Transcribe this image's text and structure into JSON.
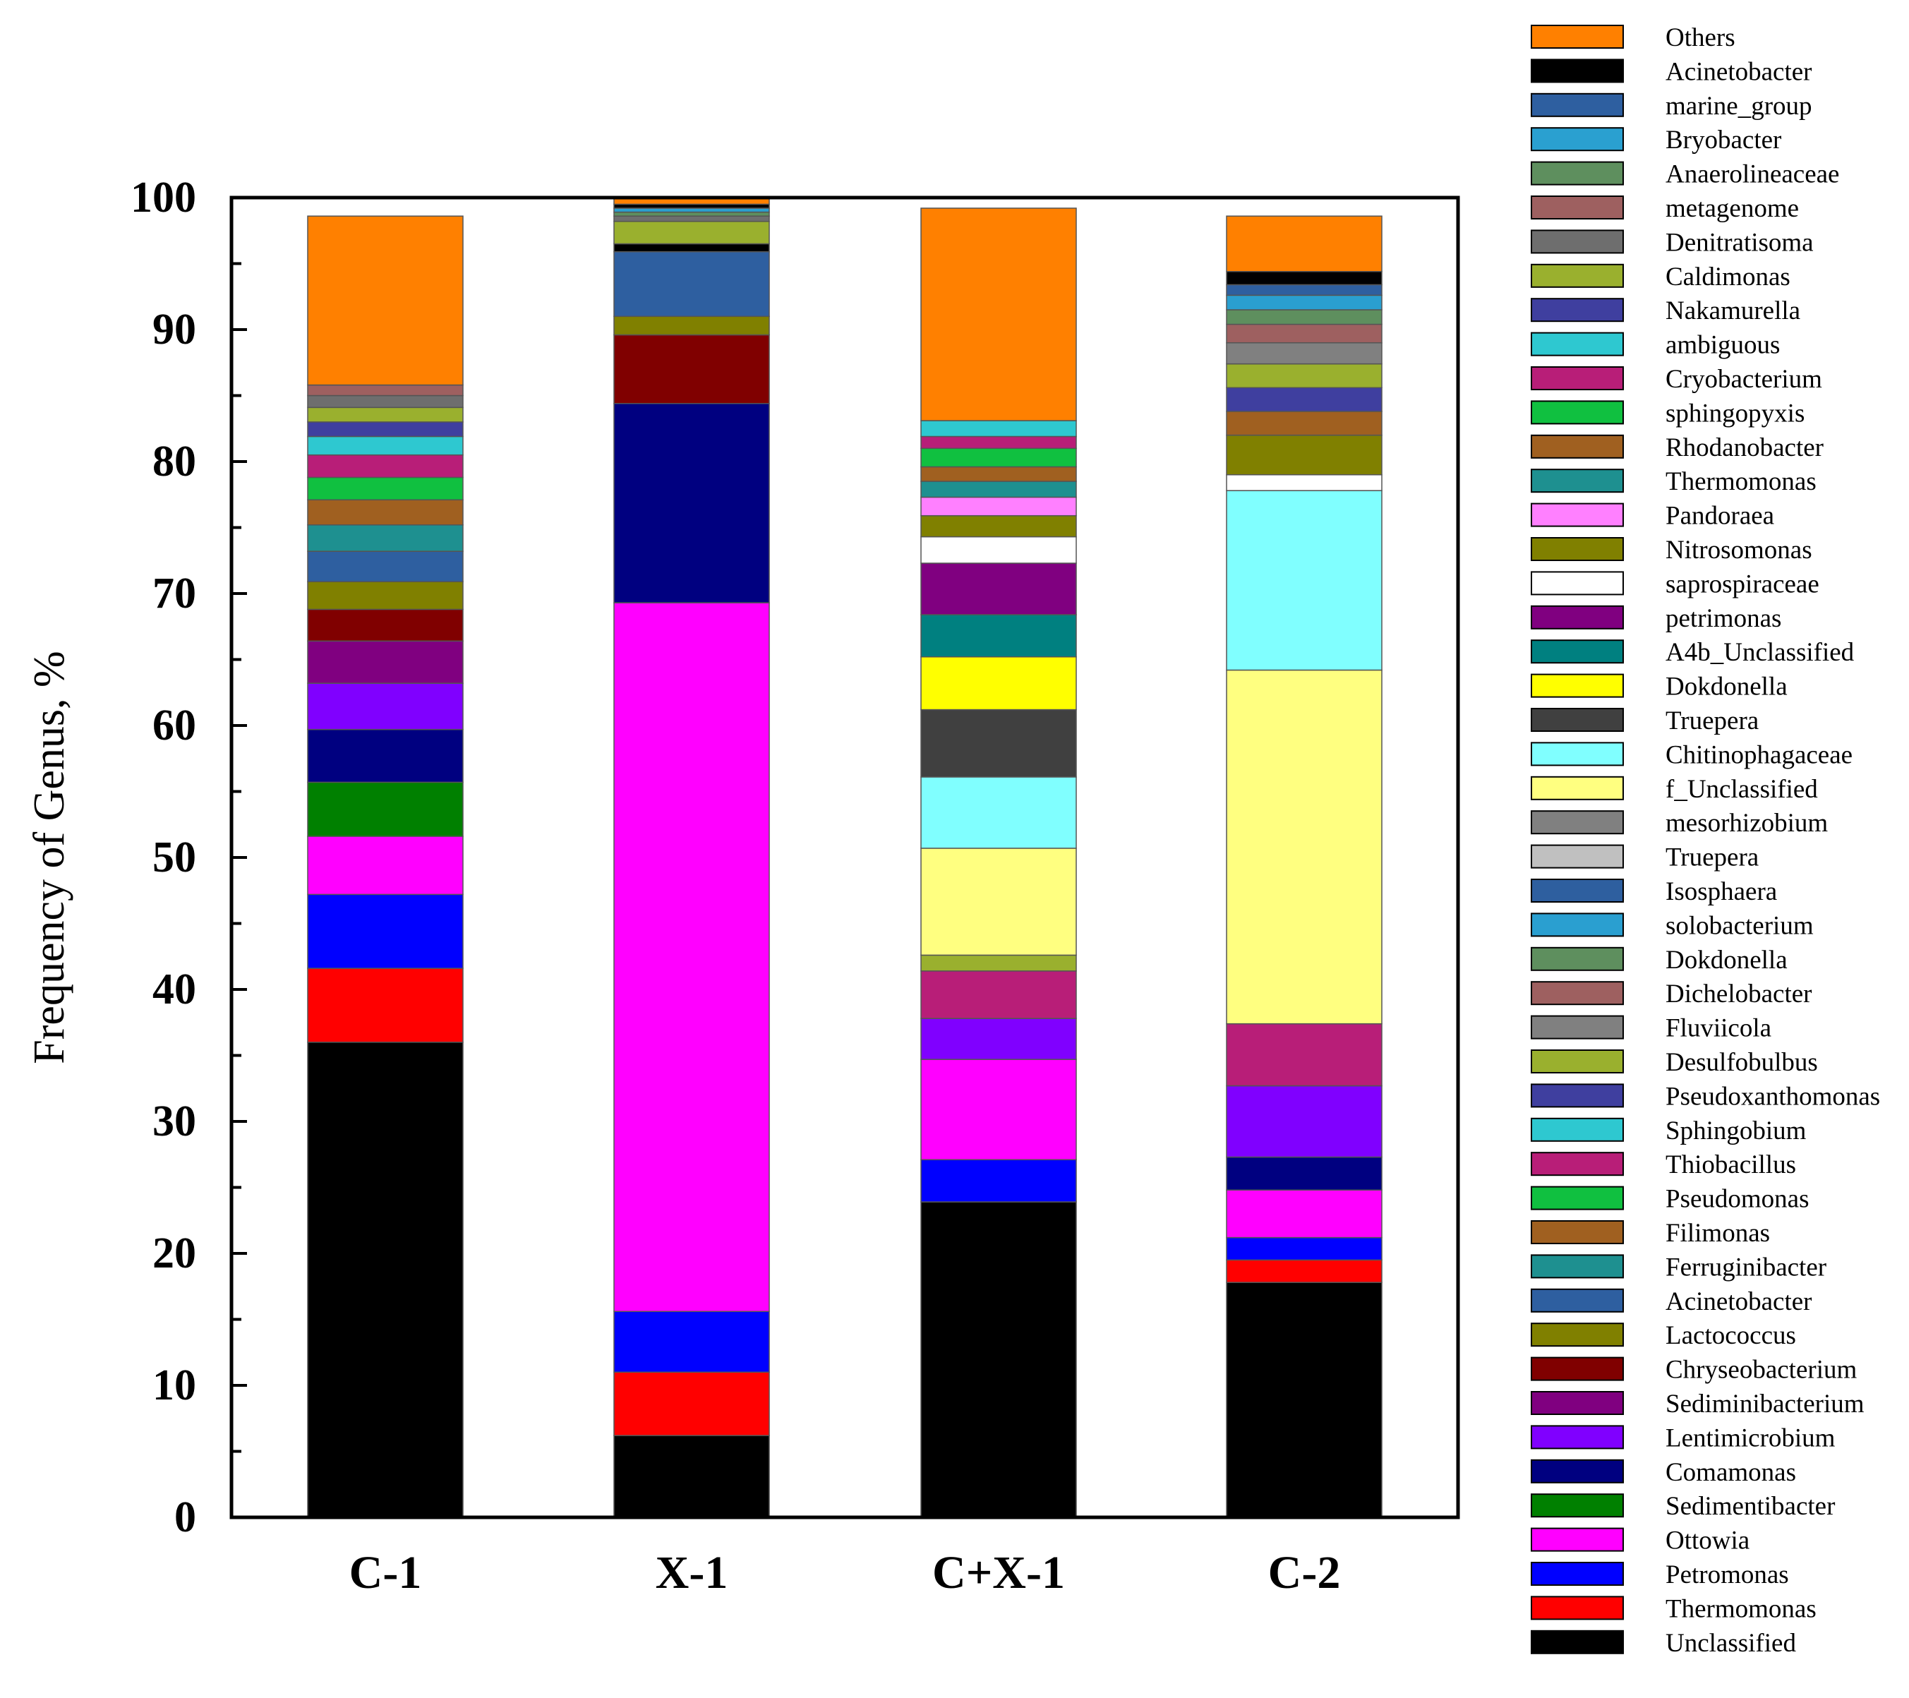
{
  "chart_data": {
    "type": "stacked-bar",
    "title": "",
    "xlabel": "",
    "ylabel": "Frequency of Genus, %",
    "ylim": [
      0,
      100
    ],
    "yticks": [
      0,
      10,
      20,
      30,
      40,
      50,
      60,
      70,
      80,
      90,
      100
    ],
    "categories": [
      "C-1",
      "X-1",
      "C+X-1",
      "C-2"
    ],
    "legend": [
      {
        "name": "Others",
        "color": "#FF8000"
      },
      {
        "name": "Acinetobacter",
        "color": "#000000"
      },
      {
        "name": "marine_group",
        "color": "#2E5FA0"
      },
      {
        "name": "Bryobacter",
        "color": "#2AA0D0"
      },
      {
        "name": "Anaerolineaceae",
        "color": "#5E8F5E"
      },
      {
        "name": "metagenome",
        "color": "#9E6060"
      },
      {
        "name": "Denitratisoma",
        "color": "#6E6E6E"
      },
      {
        "name": "Caldimonas",
        "color": "#9AB02E"
      },
      {
        "name": "Nakamurella",
        "color": "#3F3F9F"
      },
      {
        "name": "ambiguous",
        "color": "#2EC8D0"
      },
      {
        "name": "Cryobacterium",
        "color": "#B81E78"
      },
      {
        "name": "sphingopyxis",
        "color": "#10C040"
      },
      {
        "name": "Rhodanobacter",
        "color": "#A06020"
      },
      {
        "name": "Thermomonas",
        "color": "#1E9090"
      },
      {
        "name": "Pandoraea",
        "color": "#FF80FF"
      },
      {
        "name": "Nitrosomonas",
        "color": "#808000"
      },
      {
        "name": "saprospiraceae",
        "color": "#FFFFFF"
      },
      {
        "name": "petrimonas",
        "color": "#800080"
      },
      {
        "name": "A4b_Unclassified",
        "color": "#008080"
      },
      {
        "name": "Dokdonella",
        "color": "#FFFF00"
      },
      {
        "name": "Truepera",
        "color": "#404040"
      },
      {
        "name": "Chitinophagaceae",
        "color": "#80FFFF"
      },
      {
        "name": "f_Unclassified",
        "color": "#FFFF80"
      },
      {
        "name": "mesorhizobium",
        "color": "#808080"
      },
      {
        "name": "Truepera",
        "color": "#C0C0C0"
      },
      {
        "name": "Isosphaera",
        "color": "#2E5F9F"
      },
      {
        "name": "solobacterium",
        "color": "#2A9FD0"
      },
      {
        "name": "Dokdonella",
        "color": "#5E8F5E"
      },
      {
        "name": "Dichelobacter",
        "color": "#9E6060"
      },
      {
        "name": "Fluviicola",
        "color": "#808080"
      },
      {
        "name": "Desulfobulbus",
        "color": "#9AB02E"
      },
      {
        "name": "Pseudoxanthomonas",
        "color": "#3F3F9F"
      },
      {
        "name": "Sphingobium",
        "color": "#2EC8D0"
      },
      {
        "name": "Thiobacillus",
        "color": "#B81E78"
      },
      {
        "name": "Pseudomonas",
        "color": "#10C040"
      },
      {
        "name": "Filimonas",
        "color": "#A06020"
      },
      {
        "name": "Ferruginibacter",
        "color": "#1E9090"
      },
      {
        "name": "Acinetobacter",
        "color": "#2E5FA0"
      },
      {
        "name": "Lactococcus",
        "color": "#808000"
      },
      {
        "name": "Chryseobacterium",
        "color": "#800000"
      },
      {
        "name": "Sediminibacterium",
        "color": "#800080"
      },
      {
        "name": "Lentimicrobium",
        "color": "#8000FF"
      },
      {
        "name": "Comamonas",
        "color": "#000080"
      },
      {
        "name": "Sedimentibacter",
        "color": "#008000"
      },
      {
        "name": "Ottowia",
        "color": "#FF00FF"
      },
      {
        "name": "Petromonas",
        "color": "#0000FF"
      },
      {
        "name": "Thermomonas",
        "color": "#FF0000"
      },
      {
        "name": "Unclassified",
        "color": "#000000"
      }
    ],
    "series_note": "Each bar segment lists [value_in_percent, color] from bottom (0%) upward.",
    "bars": [
      {
        "category": "C-1",
        "segments": [
          [
            36.0,
            "#000000"
          ],
          [
            5.6,
            "#FF0000"
          ],
          [
            5.6,
            "#0000FF"
          ],
          [
            4.4,
            "#FF00FF"
          ],
          [
            4.1,
            "#008000"
          ],
          [
            4.0,
            "#000080"
          ],
          [
            3.5,
            "#8000FF"
          ],
          [
            3.2,
            "#800080"
          ],
          [
            2.4,
            "#800000"
          ],
          [
            2.1,
            "#808000"
          ],
          [
            2.3,
            "#2E5FA0"
          ],
          [
            2.0,
            "#1E9090"
          ],
          [
            1.9,
            "#A06020"
          ],
          [
            1.7,
            "#10C040"
          ],
          [
            1.7,
            "#B81E78"
          ],
          [
            1.4,
            "#2EC8D0"
          ],
          [
            1.1,
            "#3F3F9F"
          ],
          [
            1.1,
            "#9AB02E"
          ],
          [
            0.9,
            "#6E6E6E"
          ],
          [
            0.8,
            "#9E6060"
          ],
          [
            12.8,
            "#FF8000"
          ]
        ]
      },
      {
        "category": "X-1",
        "segments": [
          [
            6.2,
            "#000000"
          ],
          [
            4.8,
            "#FF0000"
          ],
          [
            4.6,
            "#0000FF"
          ],
          [
            53.7,
            "#FF00FF"
          ],
          [
            15.1,
            "#000080"
          ],
          [
            5.2,
            "#800000"
          ],
          [
            1.4,
            "#808000"
          ],
          [
            4.9,
            "#2E5FA0"
          ],
          [
            0.6,
            "#000000"
          ],
          [
            1.7,
            "#9AB02E"
          ],
          [
            0.4,
            "#6E6E6E"
          ],
          [
            0.3,
            "#5E8F5E"
          ],
          [
            0.3,
            "#2AA0D0"
          ],
          [
            0.3,
            "#000000"
          ],
          [
            0.5,
            "#FF8000"
          ]
        ]
      },
      {
        "category": "C+X-1",
        "segments": [
          [
            23.9,
            "#000000"
          ],
          [
            3.2,
            "#0000FF"
          ],
          [
            7.6,
            "#FF00FF"
          ],
          [
            3.1,
            "#8000FF"
          ],
          [
            3.6,
            "#B81E78"
          ],
          [
            1.2,
            "#9AB02E"
          ],
          [
            8.1,
            "#FFFF80"
          ],
          [
            5.4,
            "#80FFFF"
          ],
          [
            5.1,
            "#404040"
          ],
          [
            4.0,
            "#FFFF00"
          ],
          [
            3.2,
            "#008080"
          ],
          [
            3.9,
            "#800080"
          ],
          [
            2.0,
            "#FFFFFF"
          ],
          [
            1.6,
            "#808000"
          ],
          [
            1.4,
            "#FF80FF"
          ],
          [
            1.2,
            "#1E9090"
          ],
          [
            1.1,
            "#A06020"
          ],
          [
            1.4,
            "#10C040"
          ],
          [
            0.9,
            "#B81E78"
          ],
          [
            1.2,
            "#2EC8D0"
          ],
          [
            16.1,
            "#FF8000"
          ]
        ]
      },
      {
        "category": "C-2",
        "segments": [
          [
            17.8,
            "#000000"
          ],
          [
            1.7,
            "#FF0000"
          ],
          [
            1.7,
            "#0000FF"
          ],
          [
            3.6,
            "#FF00FF"
          ],
          [
            2.5,
            "#000080"
          ],
          [
            5.4,
            "#8000FF"
          ],
          [
            4.7,
            "#B81E78"
          ],
          [
            26.8,
            "#FFFF80"
          ],
          [
            13.6,
            "#80FFFF"
          ],
          [
            1.2,
            "#FFFFFF"
          ],
          [
            3.0,
            "#808000"
          ],
          [
            1.8,
            "#A06020"
          ],
          [
            1.8,
            "#3F3F9F"
          ],
          [
            1.8,
            "#9AB02E"
          ],
          [
            1.6,
            "#808080"
          ],
          [
            1.4,
            "#9E6060"
          ],
          [
            1.1,
            "#5E8F5E"
          ],
          [
            1.1,
            "#2A9FD0"
          ],
          [
            0.8,
            "#2E5F9F"
          ],
          [
            1.0,
            "#000000"
          ],
          [
            4.2,
            "#FF8000"
          ]
        ]
      }
    ]
  }
}
